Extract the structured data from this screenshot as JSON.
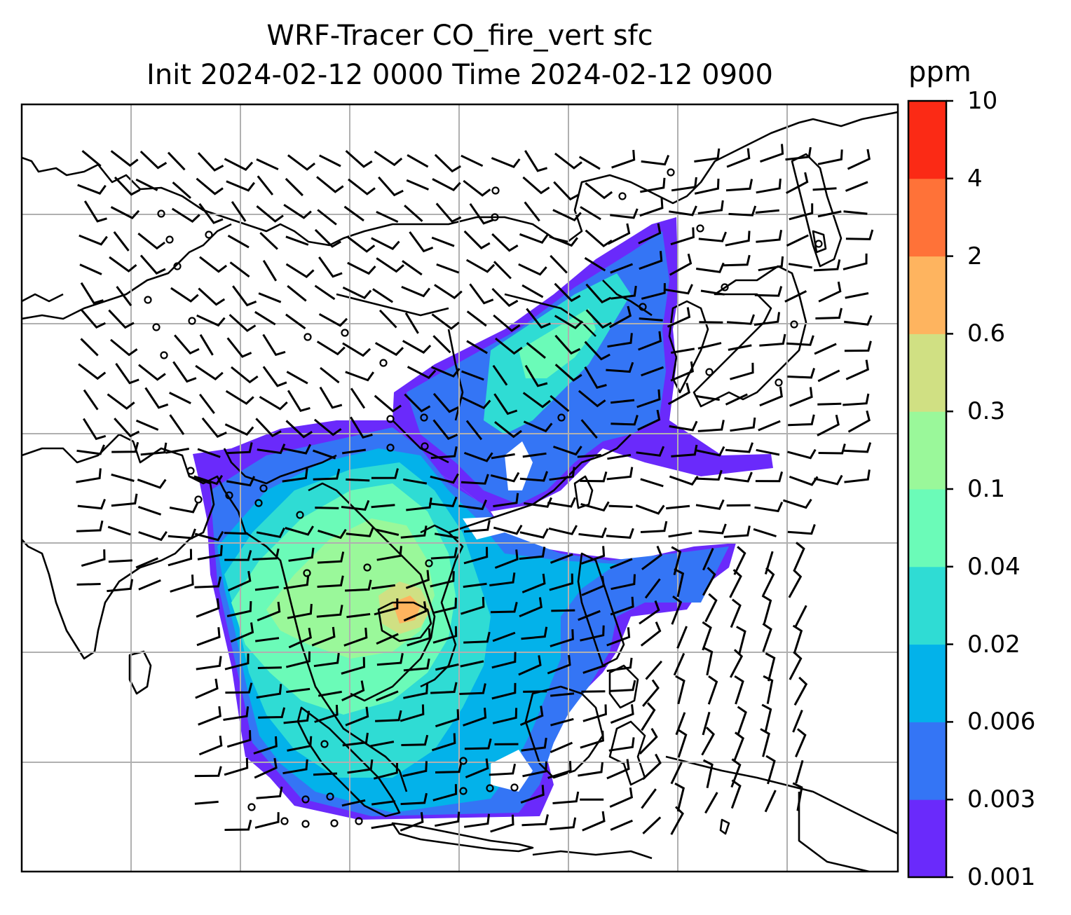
{
  "title": {
    "line1": "WRF-Tracer CO_fire_vert sfc",
    "line2": "Init 2024-02-12 0000 Time 2024-02-12 0900"
  },
  "colorbar": {
    "unit": "ppm",
    "levels": [
      "0.001",
      "0.003",
      "0.006",
      "0.02",
      "0.04",
      "0.1",
      "0.3",
      "0.6",
      "2",
      "4",
      "10"
    ],
    "colors": [
      "#6a2afb",
      "#3475f5",
      "#03b2ea",
      "#2fdcd4",
      "#6bfbb8",
      "#9af89a",
      "#d0e083",
      "#feb45f",
      "#ff7238",
      "#fb2a15"
    ]
  },
  "map": {
    "grid_lines": 7,
    "station_marker": "calm-wind-circle",
    "wind_barb": "wind-barb"
  }
}
